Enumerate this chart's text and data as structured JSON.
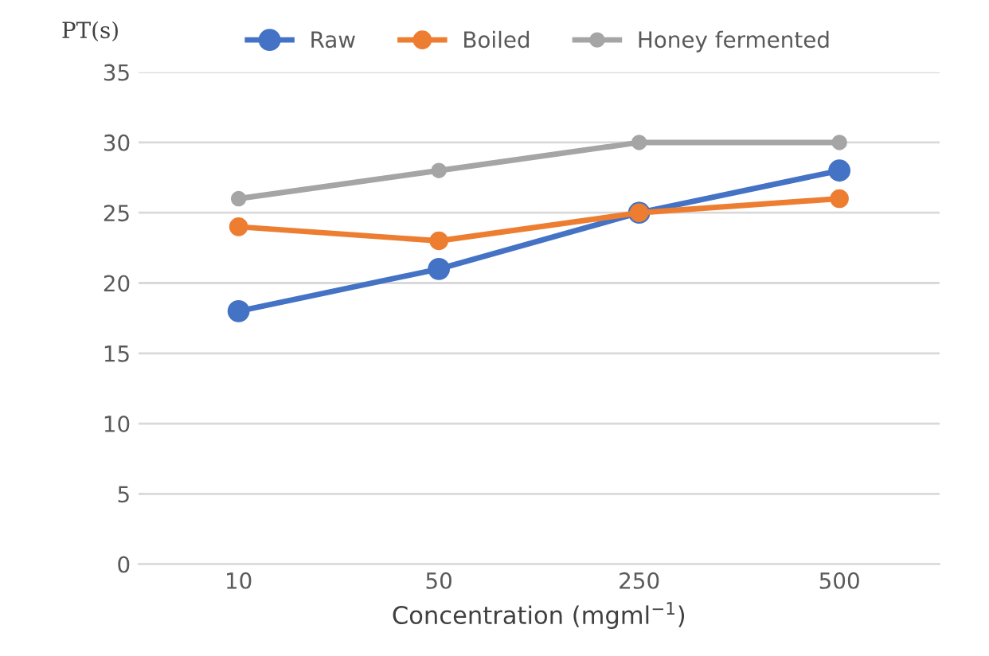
{
  "chart_data": {
    "type": "line",
    "ylabel": "PT(s)",
    "xlabel": "Concentration (mgml$^{−1}$)",
    "categories": [
      "10",
      "50",
      "250",
      "500"
    ],
    "series": [
      {
        "name": "Raw",
        "color": "#4472c4",
        "values": [
          18,
          21,
          25,
          28
        ]
      },
      {
        "name": "Boiled",
        "color": "#ed7d31",
        "values": [
          24,
          23,
          25,
          26
        ]
      },
      {
        "name": "Honey fermented",
        "color": "#a5a5a5",
        "values": [
          26,
          28,
          30,
          30
        ]
      }
    ],
    "ylim": [
      0,
      35
    ],
    "yticks": [
      0,
      5,
      10,
      15,
      20,
      25,
      30,
      35
    ],
    "grid": "y",
    "legend": "top",
    "marker": "circle",
    "line_style": "solid"
  }
}
